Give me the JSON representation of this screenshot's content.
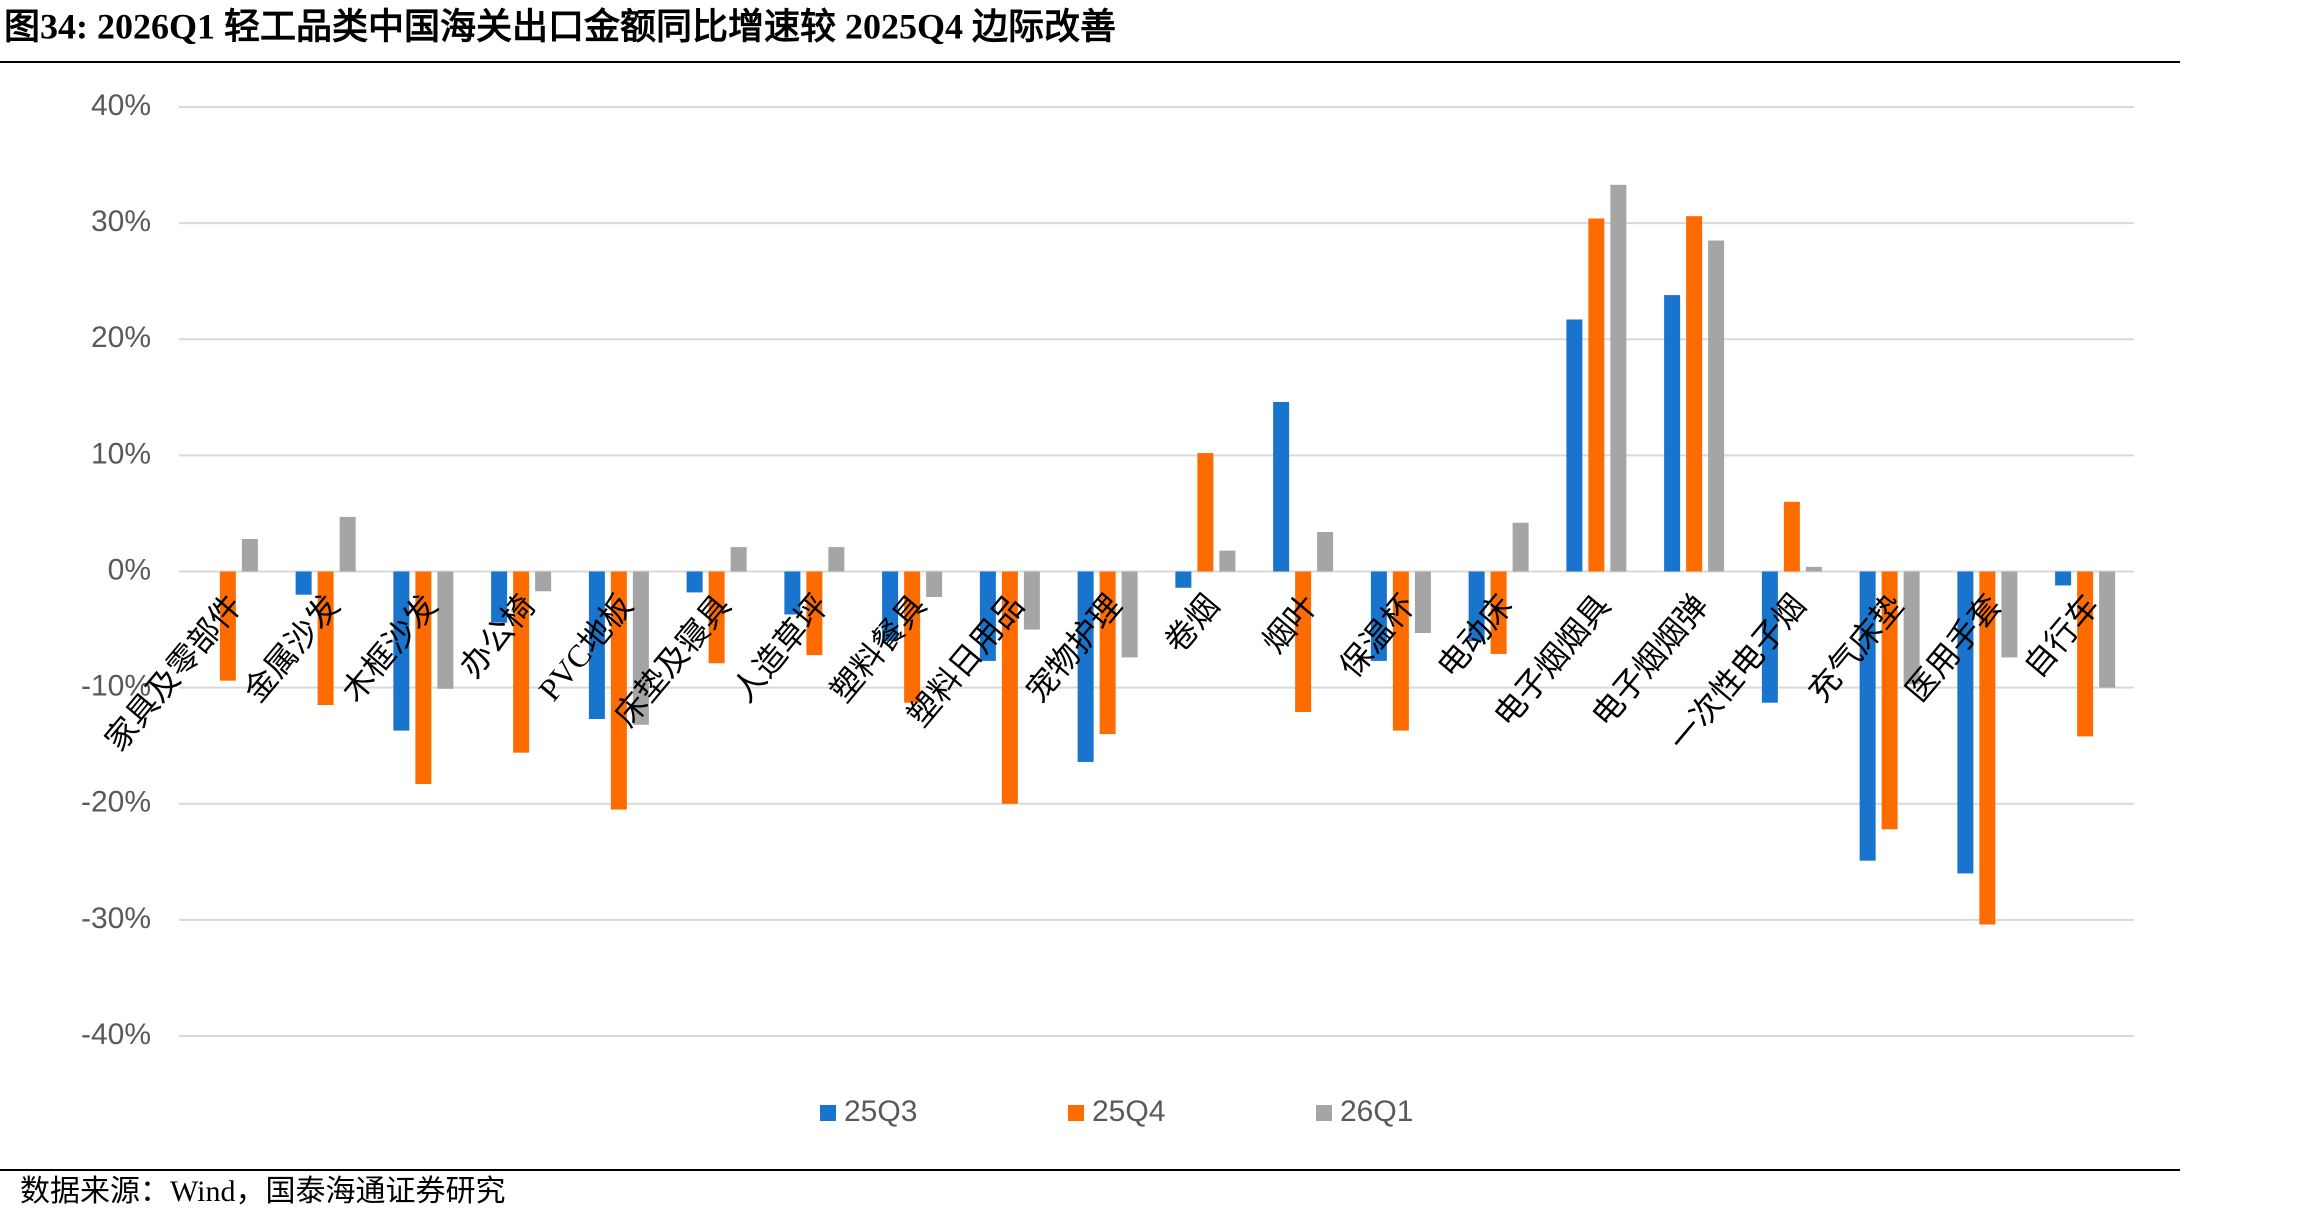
{
  "chart_data": {
    "type": "bar",
    "title": "图34:  2026Q1 轻工品类中国海关出口金额同比增速较 2025Q4 边际改善",
    "source": "数据来源：Wind，国泰海通证券研究",
    "categories": [
      "家具及零部件",
      "金属沙发",
      "木框沙发",
      "办公椅",
      "PVC地板",
      "床垫及寝具",
      "人造草坪",
      "塑料餐具",
      "塑料日用品",
      "宠物护理",
      "卷烟",
      "烟叶",
      "保温杯",
      "电动床",
      "电子烟烟具",
      "电子烟烟弹",
      "一次性电子烟",
      "充气床垫",
      "医用手套",
      "自行车"
    ],
    "series": [
      {
        "name": "25Q3",
        "color": "#1874cd",
        "values": [
          0,
          -2.0,
          -13.7,
          -4.4,
          -12.7,
          -1.8,
          -3.7,
          -6.0,
          -7.7,
          -16.4,
          -1.4,
          14.6,
          -7.7,
          -6.0,
          21.7,
          23.8,
          -11.3,
          -24.9,
          -26.0,
          -1.2
        ]
      },
      {
        "name": "25Q4",
        "color": "#fe6c00",
        "values": [
          -9.4,
          -11.5,
          -18.3,
          -15.6,
          -20.5,
          -7.9,
          -7.2,
          -11.3,
          -20.0,
          -14.0,
          10.2,
          -12.1,
          -13.7,
          -7.1,
          30.4,
          30.6,
          6.0,
          -22.2,
          -30.4,
          -14.2
        ]
      },
      {
        "name": "26Q1",
        "color": "#a5a5a5",
        "values": [
          2.8,
          4.7,
          -10.1,
          -1.7,
          -13.2,
          2.1,
          2.1,
          -2.2,
          -5.0,
          -7.4,
          1.8,
          3.4,
          -5.3,
          4.2,
          33.3,
          28.5,
          0.4,
          -9.7,
          -7.4,
          -10.0
        ]
      }
    ],
    "ylim": [
      -40,
      40
    ],
    "yticks": [
      {
        "value": -40,
        "label": "-40%"
      },
      {
        "value": -30,
        "label": "-30%"
      },
      {
        "value": -20,
        "label": "-20%"
      },
      {
        "value": -10,
        "label": "-10%"
      },
      {
        "value": 0,
        "label": "0%"
      },
      {
        "value": 10,
        "label": "10%"
      },
      {
        "value": 20,
        "label": "20%"
      },
      {
        "value": 30,
        "label": "30%"
      },
      {
        "value": 40,
        "label": "40%"
      }
    ],
    "grid": true,
    "legend": "bottom"
  }
}
